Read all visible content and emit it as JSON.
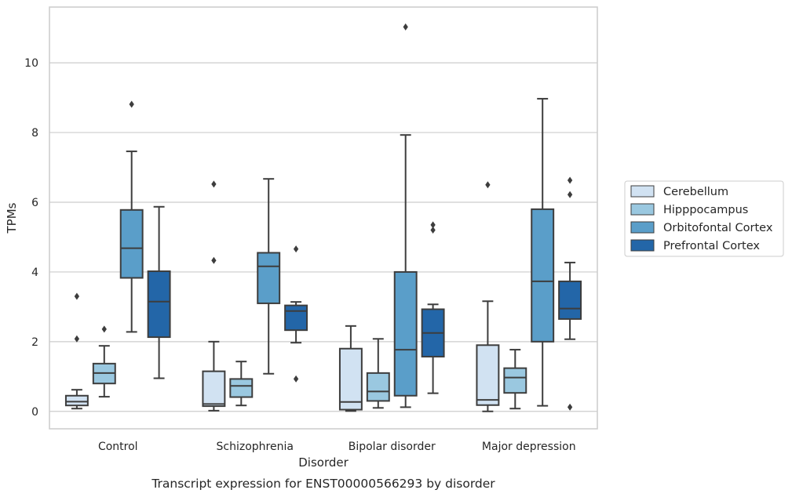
{
  "chart_data": {
    "type": "box",
    "caption": "Transcript expression for ENST00000566293 by disorder",
    "xlabel": "Disorder",
    "ylabel": "TPMs",
    "ylim": [
      -0.5,
      11.6
    ],
    "yticks": [
      0,
      2,
      4,
      6,
      8,
      10
    ],
    "grid": "horizontal",
    "legend_position": "right",
    "categories": [
      "Control",
      "Schizophrenia",
      "Bipolar disorder",
      "Major depression"
    ],
    "series": [
      {
        "name": "Cerebellum",
        "color": "#d1e2f2",
        "boxes": [
          {
            "whislo": 0.08,
            "q1": 0.17,
            "med": 0.28,
            "q3": 0.45,
            "whishi": 0.62,
            "fliers": [
              2.08,
              3.3
            ]
          },
          {
            "whislo": 0.02,
            "q1": 0.15,
            "med": 0.21,
            "q3": 1.15,
            "whishi": 2.0,
            "fliers": [
              4.33,
              6.52
            ]
          },
          {
            "whislo": 0.01,
            "q1": 0.05,
            "med": 0.27,
            "q3": 1.8,
            "whishi": 2.45,
            "fliers": []
          },
          {
            "whislo": 0.0,
            "q1": 0.18,
            "med": 0.33,
            "q3": 1.9,
            "whishi": 3.16,
            "fliers": [
              6.5
            ]
          }
        ]
      },
      {
        "name": "Hipppocampus",
        "color": "#9ac8e0",
        "boxes": [
          {
            "whislo": 0.42,
            "q1": 0.8,
            "med": 1.1,
            "q3": 1.37,
            "whishi": 1.88,
            "fliers": [
              2.36
            ]
          },
          {
            "whislo": 0.17,
            "q1": 0.41,
            "med": 0.73,
            "q3": 0.93,
            "whishi": 1.43,
            "fliers": []
          },
          {
            "whislo": 0.1,
            "q1": 0.3,
            "med": 0.57,
            "q3": 1.1,
            "whishi": 2.08,
            "fliers": []
          },
          {
            "whislo": 0.08,
            "q1": 0.53,
            "med": 0.97,
            "q3": 1.24,
            "whishi": 1.77,
            "fliers": []
          }
        ]
      },
      {
        "name": "Orbitofontal Cortex",
        "color": "#5a9ec9",
        "boxes": [
          {
            "whislo": 2.28,
            "q1": 3.83,
            "med": 4.68,
            "q3": 5.78,
            "whishi": 7.46,
            "fliers": [
              8.81
            ]
          },
          {
            "whislo": 1.08,
            "q1": 3.1,
            "med": 4.16,
            "q3": 4.55,
            "whishi": 6.67,
            "fliers": []
          },
          {
            "whislo": 0.12,
            "q1": 0.45,
            "med": 1.77,
            "q3": 4.0,
            "whishi": 7.93,
            "fliers": [
              11.03
            ]
          },
          {
            "whislo": 0.16,
            "q1": 2.0,
            "med": 3.73,
            "q3": 5.8,
            "whishi": 8.97,
            "fliers": []
          }
        ]
      },
      {
        "name": "Prefrontal Cortex",
        "color": "#2366a8",
        "boxes": [
          {
            "whislo": 0.95,
            "q1": 2.13,
            "med": 3.15,
            "q3": 4.02,
            "whishi": 5.87,
            "fliers": []
          },
          {
            "whislo": 1.97,
            "q1": 2.33,
            "med": 2.88,
            "q3": 3.04,
            "whishi": 3.14,
            "fliers": [
              0.93,
              4.66
            ]
          },
          {
            "whislo": 0.52,
            "q1": 1.57,
            "med": 2.25,
            "q3": 2.93,
            "whishi": 3.07,
            "fliers": [
              5.2,
              5.35
            ]
          },
          {
            "whislo": 2.07,
            "q1": 2.65,
            "med": 2.95,
            "q3": 3.73,
            "whishi": 4.27,
            "fliers": [
              0.12,
              6.22,
              6.63
            ]
          }
        ]
      }
    ]
  }
}
